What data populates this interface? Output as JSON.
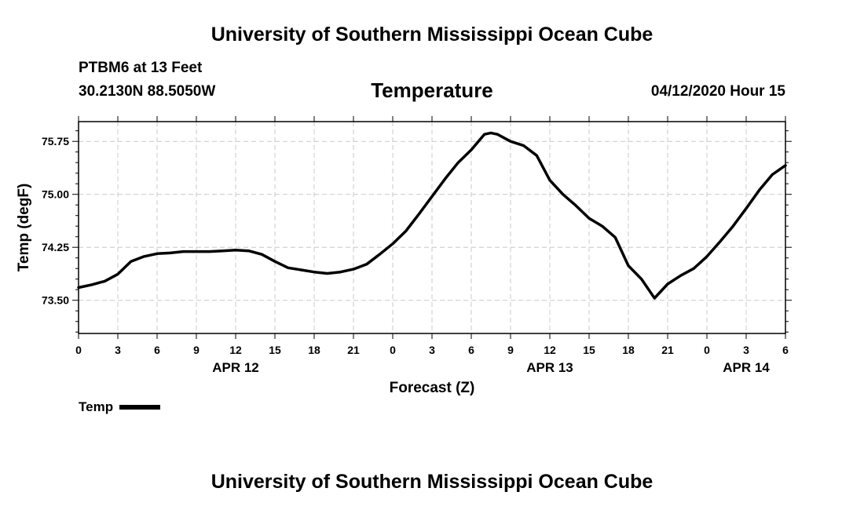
{
  "header": {
    "title_top": "University of Southern Mississippi Ocean Cube",
    "title_bottom": "University of Southern Mississippi Ocean Cube",
    "station": "PTBM6 at 13 Feet",
    "coords": "30.2130N 88.5050W",
    "datetime": "04/12/2020 Hour 15"
  },
  "chart_data": {
    "type": "line",
    "title": "Temperature",
    "xlabel": "Forecast (Z)",
    "ylabel": "Temp (degF)",
    "xlim": [
      0,
      54
    ],
    "ylim": [
      73.03,
      76.03
    ],
    "x_tick_values": [
      0,
      3,
      6,
      9,
      12,
      15,
      18,
      21,
      24,
      27,
      30,
      33,
      36,
      39,
      42,
      45,
      48,
      51,
      54
    ],
    "x_tick_labels": [
      "0",
      "3",
      "6",
      "9",
      "12",
      "15",
      "18",
      "21",
      "0",
      "3",
      "6",
      "9",
      "12",
      "15",
      "18",
      "21",
      "0",
      "3",
      "6"
    ],
    "x_day_labels": [
      {
        "x": 12,
        "label": "APR 12"
      },
      {
        "x": 36,
        "label": "APR 13"
      },
      {
        "x": 51,
        "label": "APR 14"
      }
    ],
    "y_tick_labels": [
      "73.50",
      "74.25",
      "75.00",
      "75.75"
    ],
    "y_tick_values": [
      73.5,
      74.25,
      75.0,
      75.75
    ],
    "legend": [
      {
        "name": "Temp",
        "position": "bottom-left"
      }
    ],
    "grid": true,
    "series": [
      {
        "name": "Temp",
        "x": [
          0,
          1,
          2,
          3,
          4,
          5,
          6,
          7,
          8,
          9,
          10,
          11,
          12,
          13,
          14,
          15,
          16,
          17,
          18,
          19,
          20,
          21,
          22,
          23,
          24,
          25,
          26,
          27,
          28,
          29,
          30,
          31,
          31.5,
          32,
          33,
          34,
          35,
          36,
          37,
          38,
          39,
          40,
          41,
          42,
          43,
          44,
          45,
          46,
          47,
          48,
          49,
          50,
          51,
          52,
          53,
          54
        ],
        "values": [
          73.68,
          73.72,
          73.77,
          73.87,
          74.05,
          74.12,
          74.16,
          74.17,
          74.19,
          74.19,
          74.19,
          74.2,
          74.21,
          74.2,
          74.15,
          74.05,
          73.96,
          73.93,
          73.9,
          73.88,
          73.9,
          73.94,
          74.01,
          74.15,
          74.3,
          74.48,
          74.72,
          74.97,
          75.22,
          75.45,
          75.63,
          75.85,
          75.87,
          75.85,
          75.75,
          75.69,
          75.55,
          75.2,
          75.0,
          74.84,
          74.66,
          74.55,
          74.39,
          73.99,
          73.8,
          73.53,
          73.73,
          73.85,
          73.95,
          74.12,
          74.33,
          74.55,
          74.8,
          75.06,
          75.28,
          75.41
        ]
      }
    ]
  }
}
